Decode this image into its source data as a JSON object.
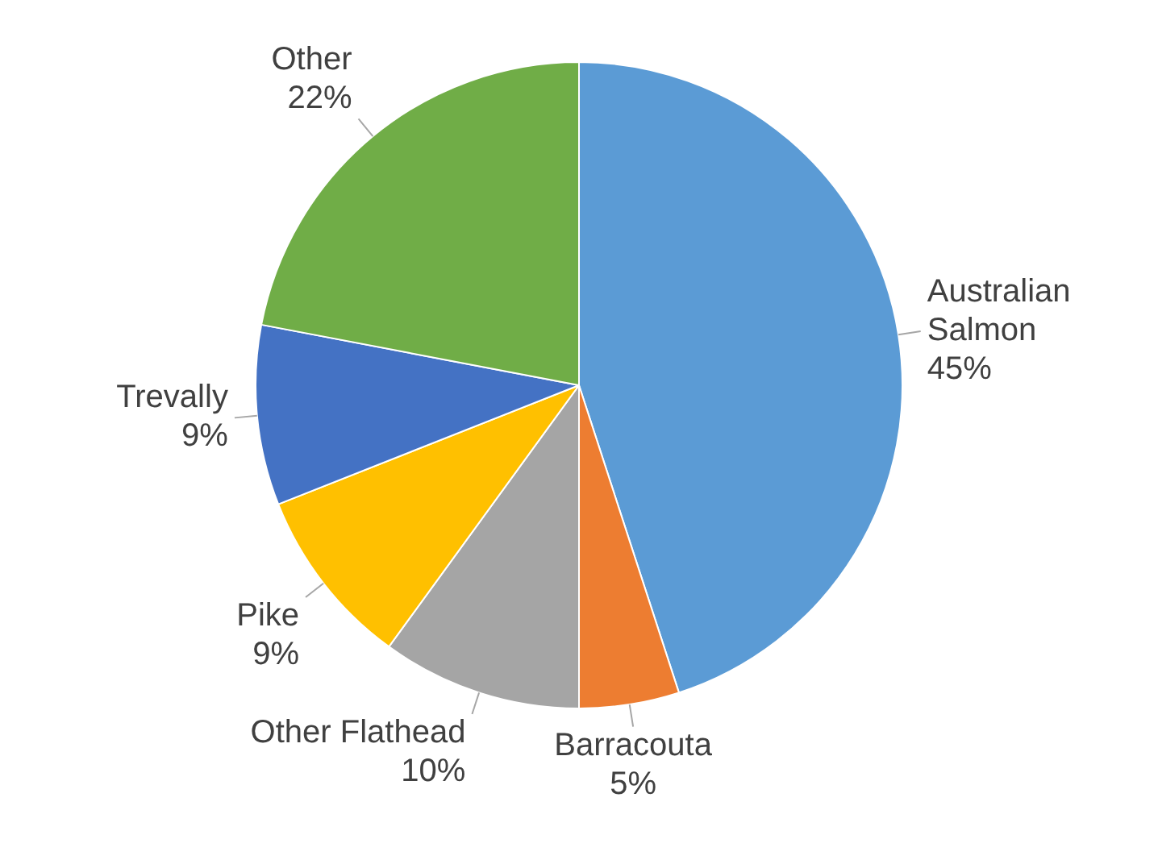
{
  "chart_data": {
    "type": "pie",
    "categories": [
      "Australian Salmon",
      "Barracouta",
      "Other Flathead",
      "Pike",
      "Trevally",
      "Other"
    ],
    "values": [
      45,
      5,
      10,
      9,
      9,
      22
    ],
    "colors": [
      "#5b9bd5",
      "#ed7d31",
      "#a5a5a5",
      "#ffc000",
      "#4472c4",
      "#70ad47"
    ],
    "value_labels": [
      "45%",
      "5%",
      "10%",
      "9%",
      "9%",
      "22%"
    ],
    "legend": false
  }
}
